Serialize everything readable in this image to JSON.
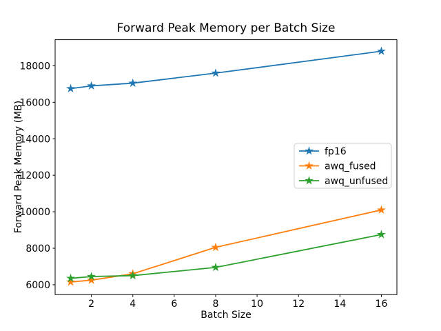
{
  "chart_data": {
    "type": "line",
    "title": "Forward Peak Memory per Batch Size",
    "xlabel": "Batch Size",
    "ylabel": "Forward Peak Memory (MB)",
    "x": [
      1,
      2,
      4,
      8,
      16
    ],
    "series": [
      {
        "name": "fp16",
        "color": "#1f77b4",
        "values": [
          16750,
          16900,
          17050,
          17600,
          18800
        ]
      },
      {
        "name": "awq_fused",
        "color": "#ff7f0e",
        "values": [
          6150,
          6250,
          6600,
          8050,
          10100
        ]
      },
      {
        "name": "awq_unfused",
        "color": "#2ca02c",
        "values": [
          6350,
          6450,
          6500,
          6950,
          8750
        ]
      }
    ],
    "xticks": [
      2,
      4,
      6,
      8,
      10,
      12,
      14,
      16
    ],
    "yticks": [
      6000,
      8000,
      10000,
      12000,
      14000,
      16000,
      18000
    ],
    "xlim": [
      0.25,
      16.75
    ],
    "ylim": [
      5460,
      19430
    ],
    "grid": false,
    "legend_position": "center-right",
    "marker": "star",
    "background": "#ffffff",
    "axis_color": "#000000",
    "legend_border_color": "#cccccc"
  }
}
